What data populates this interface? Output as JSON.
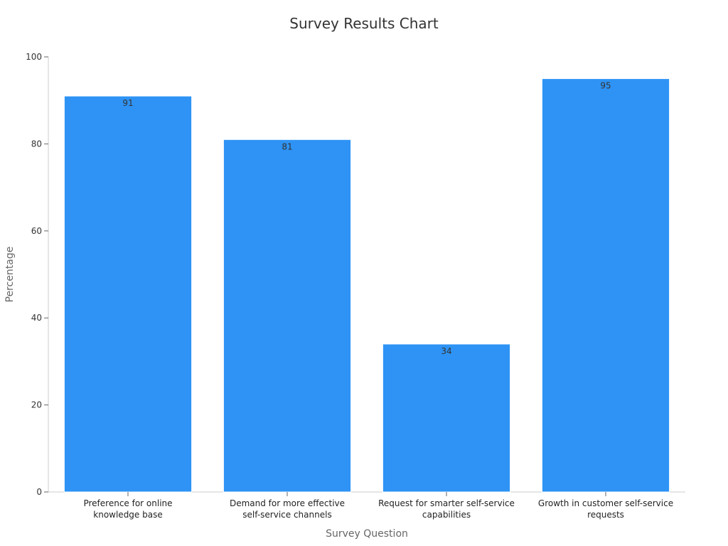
{
  "chart_data": {
    "type": "bar",
    "title": "Survey Results Chart",
    "xlabel": "Survey Question",
    "ylabel": "Percentage",
    "categories": [
      [
        "Preference for online",
        "knowledge base"
      ],
      [
        "Demand for more effective",
        "self-service channels"
      ],
      [
        "Request for smarter self-service",
        "capabilities"
      ],
      [
        "Growth in customer self-service",
        "requests"
      ]
    ],
    "values": [
      91,
      81,
      34,
      95
    ],
    "ylim": [
      0,
      100
    ],
    "yticks": [
      0,
      20,
      40,
      60,
      80,
      100
    ],
    "grid": false,
    "legend": "none",
    "bar_color": "#2e93f5",
    "show_data_labels": true
  }
}
